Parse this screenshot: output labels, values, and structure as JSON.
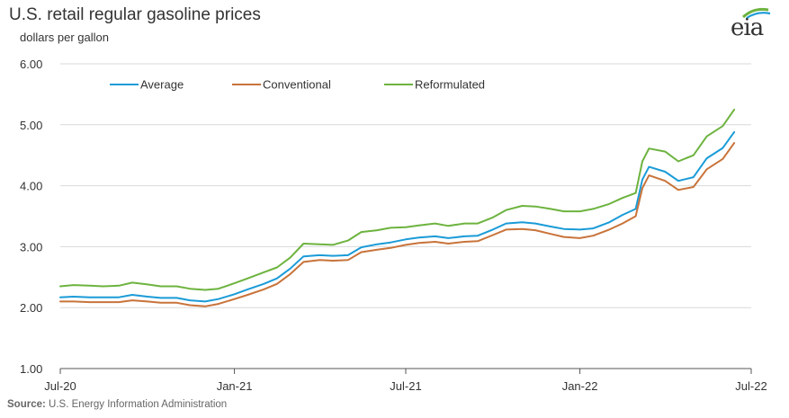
{
  "header": {
    "title": "U.S. retail regular gasoline prices",
    "subtitle": "dollars per gallon"
  },
  "logo": {
    "text": "eia",
    "accent": "#1a9bd7",
    "swoosh": "#6db33f"
  },
  "source": {
    "label": "Source:",
    "text": " U.S. Energy Information Administration"
  },
  "chart_data": {
    "type": "line",
    "xlim": [
      "2020-07-01",
      "2022-07-01"
    ],
    "ylim": [
      1.0,
      6.0
    ],
    "yticks": [
      "1.00",
      "2.00",
      "3.00",
      "4.00",
      "5.00",
      "6.00"
    ],
    "xticks": [
      {
        "label": "Jul-20",
        "date": "2020-07-01"
      },
      {
        "label": "Jan-21",
        "date": "2021-01-01"
      },
      {
        "label": "Jul-21",
        "date": "2021-07-01"
      },
      {
        "label": "Jan-22",
        "date": "2022-01-01"
      },
      {
        "label": "Jul-22",
        "date": "2022-07-01"
      }
    ],
    "grid": true,
    "legend": "top-left",
    "x": [
      "2020-07-01",
      "2020-07-15",
      "2020-08-01",
      "2020-08-15",
      "2020-09-01",
      "2020-09-15",
      "2020-10-01",
      "2020-10-15",
      "2020-11-01",
      "2020-11-15",
      "2020-12-01",
      "2020-12-15",
      "2021-01-01",
      "2021-01-15",
      "2021-02-01",
      "2021-02-15",
      "2021-03-01",
      "2021-03-15",
      "2021-04-01",
      "2021-04-15",
      "2021-05-01",
      "2021-05-15",
      "2021-06-01",
      "2021-06-15",
      "2021-07-01",
      "2021-07-15",
      "2021-08-01",
      "2021-08-15",
      "2021-09-01",
      "2021-09-15",
      "2021-10-01",
      "2021-10-15",
      "2021-11-01",
      "2021-11-15",
      "2021-12-01",
      "2021-12-15",
      "2022-01-01",
      "2022-01-15",
      "2022-02-01",
      "2022-02-15",
      "2022-03-01",
      "2022-03-08",
      "2022-03-15",
      "2022-04-01",
      "2022-04-15",
      "2022-05-01",
      "2022-05-15",
      "2022-06-01",
      "2022-06-13"
    ],
    "series": [
      {
        "name": "Average",
        "color": "#1a9bd7",
        "values": [
          2.17,
          2.18,
          2.17,
          2.17,
          2.17,
          2.21,
          2.18,
          2.16,
          2.16,
          2.12,
          2.1,
          2.14,
          2.22,
          2.3,
          2.39,
          2.48,
          2.64,
          2.84,
          2.86,
          2.85,
          2.86,
          2.99,
          3.04,
          3.07,
          3.12,
          3.15,
          3.17,
          3.14,
          3.17,
          3.18,
          3.28,
          3.38,
          3.4,
          3.38,
          3.33,
          3.29,
          3.28,
          3.3,
          3.4,
          3.52,
          3.62,
          4.1,
          4.31,
          4.23,
          4.08,
          4.14,
          4.45,
          4.62,
          4.88
        ]
      },
      {
        "name": "Conventional",
        "color": "#c8733a",
        "values": [
          2.1,
          2.1,
          2.09,
          2.09,
          2.09,
          2.12,
          2.1,
          2.08,
          2.08,
          2.04,
          2.02,
          2.06,
          2.14,
          2.21,
          2.3,
          2.39,
          2.55,
          2.75,
          2.78,
          2.77,
          2.78,
          2.91,
          2.95,
          2.98,
          3.03,
          3.06,
          3.08,
          3.05,
          3.08,
          3.09,
          3.19,
          3.28,
          3.29,
          3.27,
          3.21,
          3.16,
          3.14,
          3.18,
          3.28,
          3.38,
          3.5,
          3.96,
          4.17,
          4.08,
          3.93,
          3.98,
          4.27,
          4.44,
          4.7
        ]
      },
      {
        "name": "Reformulated",
        "color": "#6db33f",
        "values": [
          2.35,
          2.37,
          2.36,
          2.35,
          2.36,
          2.41,
          2.38,
          2.35,
          2.35,
          2.31,
          2.29,
          2.31,
          2.4,
          2.48,
          2.58,
          2.66,
          2.82,
          3.05,
          3.04,
          3.03,
          3.1,
          3.24,
          3.27,
          3.31,
          3.32,
          3.35,
          3.38,
          3.34,
          3.38,
          3.38,
          3.48,
          3.6,
          3.67,
          3.66,
          3.62,
          3.58,
          3.58,
          3.62,
          3.7,
          3.8,
          3.88,
          4.4,
          4.61,
          4.56,
          4.4,
          4.5,
          4.81,
          4.98,
          5.25
        ]
      }
    ]
  }
}
